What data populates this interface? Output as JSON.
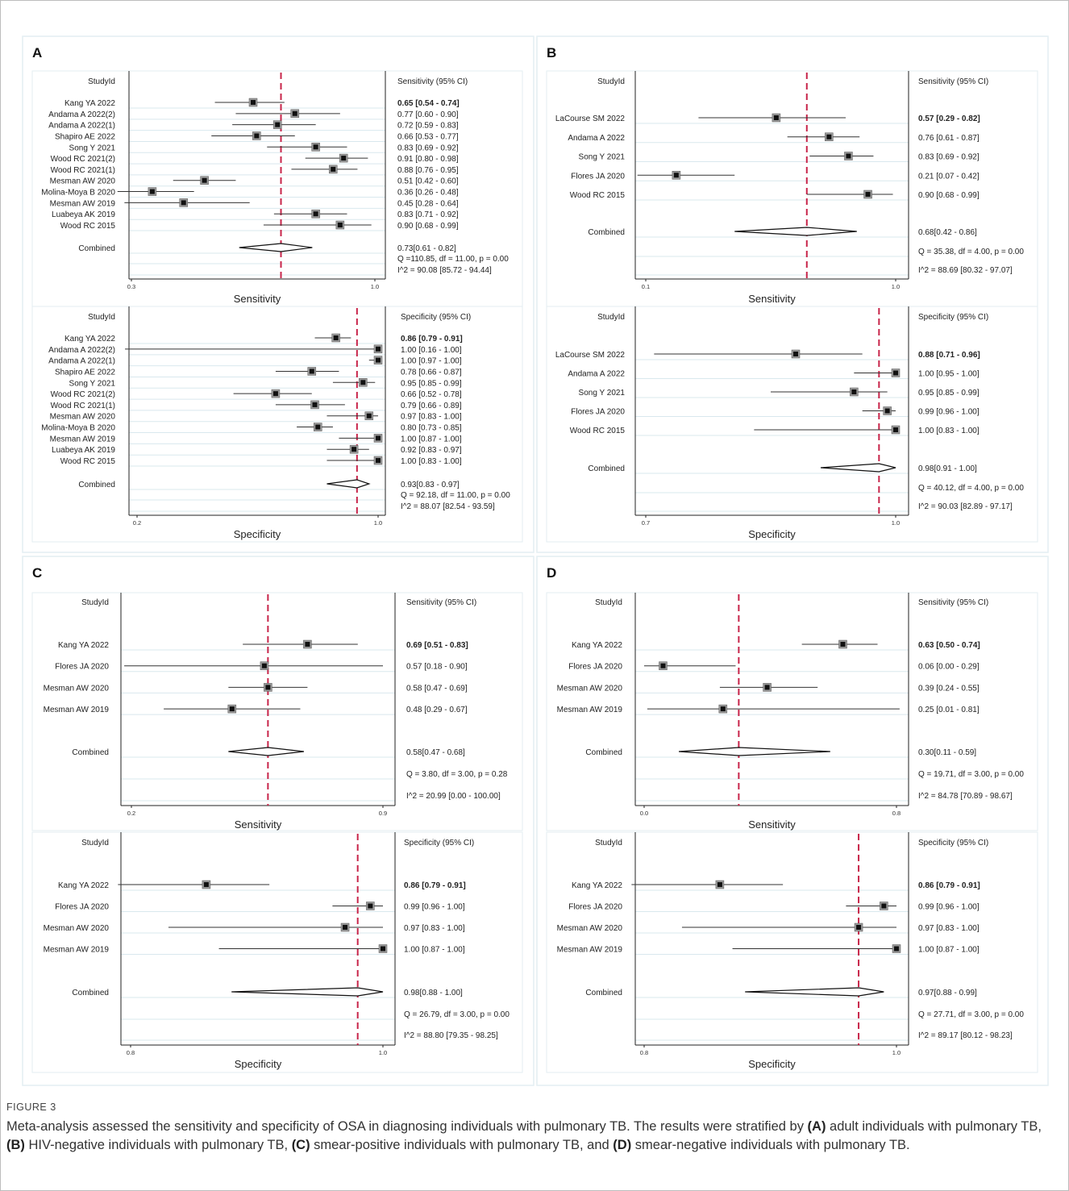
{
  "figure": {
    "label": "FIGURE 3",
    "caption_parts": [
      {
        "t": "Meta-analysis assessed the sensitivity and specificity of OSA in diagnosing individuals with pulmonary TB. The results were stratified by ",
        "b": false
      },
      {
        "t": "(A)",
        "b": true
      },
      {
        "t": " adult individuals with pulmonary TB, ",
        "b": false
      },
      {
        "t": "(B)",
        "b": true
      },
      {
        "t": " HIV-negative individuals with pulmonary TB, ",
        "b": false
      },
      {
        "t": "(C)",
        "b": true
      },
      {
        "t": " smear-positive individuals with pulmonary TB, and ",
        "b": false
      },
      {
        "t": "(D)",
        "b": true
      },
      {
        "t": " smear-negative individuals with pulmonary TB.",
        "b": false
      }
    ]
  },
  "chart_data": [
    {
      "panel": "A",
      "type": "forest",
      "measure": "sensitivity",
      "studyid_label": "StudyId",
      "ci_header": "Sensitivity (95% CI)",
      "xlabel": "Sensitivity",
      "xlim": [
        0.3,
        1.0
      ],
      "xtick_labels": [
        "0.3",
        "1.0"
      ],
      "reference_line": 0.73,
      "studies": [
        {
          "name": "Kang YA 2022",
          "est": 0.65,
          "lo": 0.54,
          "hi": 0.74,
          "text": "0.65 [0.54 - 0.74]"
        },
        {
          "name": "Andama A 2022(2)",
          "est": 0.77,
          "lo": 0.6,
          "hi": 0.9,
          "text": "0.77 [0.60 - 0.90]"
        },
        {
          "name": "Andama A 2022(1)",
          "est": 0.72,
          "lo": 0.59,
          "hi": 0.83,
          "text": "0.72 [0.59 - 0.83]"
        },
        {
          "name": "Shapiro AE 2022",
          "est": 0.66,
          "lo": 0.53,
          "hi": 0.77,
          "text": "0.66 [0.53 - 0.77]"
        },
        {
          "name": "Song Y 2021",
          "est": 0.83,
          "lo": 0.69,
          "hi": 0.92,
          "text": "0.83 [0.69 - 0.92]"
        },
        {
          "name": "Wood RC 2021(2)",
          "est": 0.91,
          "lo": 0.8,
          "hi": 0.98,
          "text": "0.91 [0.80 - 0.98]"
        },
        {
          "name": "Wood RC 2021(1)",
          "est": 0.88,
          "lo": 0.76,
          "hi": 0.95,
          "text": "0.88 [0.76 - 0.95]"
        },
        {
          "name": "Mesman AW 2020",
          "est": 0.51,
          "lo": 0.42,
          "hi": 0.6,
          "text": "0.51 [0.42 - 0.60]"
        },
        {
          "name": "Molina-Moya B 2020",
          "est": 0.36,
          "lo": 0.26,
          "hi": 0.48,
          "text": "0.36 [0.26 - 0.48]"
        },
        {
          "name": "Mesman AW 2019",
          "est": 0.45,
          "lo": 0.28,
          "hi": 0.64,
          "text": "0.45 [0.28 - 0.64]"
        },
        {
          "name": "Luabeya AK 2019",
          "est": 0.83,
          "lo": 0.71,
          "hi": 0.92,
          "text": "0.83 [0.71 - 0.92]"
        },
        {
          "name": "Wood RC 2015",
          "est": 0.9,
          "lo": 0.68,
          "hi": 0.99,
          "text": "0.90 [0.68 - 0.99]"
        }
      ],
      "combined": {
        "label": "Combined",
        "est": 0.73,
        "lo": 0.61,
        "hi": 0.82,
        "text": "0.73[0.61 - 0.82]"
      },
      "q_text": "Q =110.85, df = 11.00, p =  0.00",
      "i2_text": "I^2 = 90.08 [85.72 - 94.44]"
    },
    {
      "panel": "A",
      "type": "forest",
      "measure": "specificity",
      "studyid_label": "StudyId",
      "ci_header": "Specificity (95% CI)",
      "xlabel": "Specificity",
      "xlim": [
        0.2,
        1.0
      ],
      "xtick_labels": [
        "0.2",
        "1.0"
      ],
      "reference_line": 0.93,
      "studies": [
        {
          "name": "Kang YA 2022",
          "est": 0.86,
          "lo": 0.79,
          "hi": 0.91,
          "text": "0.86 [0.79 - 0.91]"
        },
        {
          "name": "Andama A 2022(2)",
          "est": 1.0,
          "lo": 0.16,
          "hi": 1.0,
          "text": "1.00 [0.16 - 1.00]"
        },
        {
          "name": "Andama A 2022(1)",
          "est": 1.0,
          "lo": 0.97,
          "hi": 1.0,
          "text": "1.00 [0.97 - 1.00]"
        },
        {
          "name": "Shapiro AE 2022",
          "est": 0.78,
          "lo": 0.66,
          "hi": 0.87,
          "text": "0.78 [0.66 - 0.87]"
        },
        {
          "name": "Song Y 2021",
          "est": 0.95,
          "lo": 0.85,
          "hi": 0.99,
          "text": "0.95 [0.85 - 0.99]"
        },
        {
          "name": "Wood RC 2021(2)",
          "est": 0.66,
          "lo": 0.52,
          "hi": 0.78,
          "text": "0.66 [0.52 - 0.78]"
        },
        {
          "name": "Wood RC 2021(1)",
          "est": 0.79,
          "lo": 0.66,
          "hi": 0.89,
          "text": "0.79 [0.66 - 0.89]"
        },
        {
          "name": "Mesman AW 2020",
          "est": 0.97,
          "lo": 0.83,
          "hi": 1.0,
          "text": "0.97 [0.83 - 1.00]"
        },
        {
          "name": "Molina-Moya B 2020",
          "est": 0.8,
          "lo": 0.73,
          "hi": 0.85,
          "text": "0.80 [0.73 - 0.85]"
        },
        {
          "name": "Mesman AW 2019",
          "est": 1.0,
          "lo": 0.87,
          "hi": 1.0,
          "text": "1.00 [0.87 - 1.00]"
        },
        {
          "name": "Luabeya AK 2019",
          "est": 0.92,
          "lo": 0.83,
          "hi": 0.97,
          "text": "0.92 [0.83 - 0.97]"
        },
        {
          "name": "Wood RC 2015",
          "est": 1.0,
          "lo": 0.83,
          "hi": 1.0,
          "text": "1.00 [0.83 - 1.00]"
        }
      ],
      "combined": {
        "label": "Combined",
        "est": 0.93,
        "lo": 0.83,
        "hi": 0.97,
        "text": "0.93[0.83 - 0.97]"
      },
      "q_text": "Q = 92.18, df = 11.00, p =  0.00",
      "i2_text": "I^2 = 88.07 [82.54 - 93.59]"
    },
    {
      "panel": "B",
      "type": "forest",
      "measure": "sensitivity",
      "studyid_label": "StudyId",
      "ci_header": "Sensitivity (95% CI)",
      "xlabel": "Sensitivity",
      "xlim": [
        0.1,
        1.0
      ],
      "xtick_labels": [
        "0.1",
        "1.0"
      ],
      "reference_line": 0.68,
      "studies": [
        {
          "name": "LaCourse SM 2022",
          "est": 0.57,
          "lo": 0.29,
          "hi": 0.82,
          "text": "0.57 [0.29 - 0.82]"
        },
        {
          "name": "Andama A 2022",
          "est": 0.76,
          "lo": 0.61,
          "hi": 0.87,
          "text": "0.76 [0.61 - 0.87]"
        },
        {
          "name": "Song Y 2021",
          "est": 0.83,
          "lo": 0.69,
          "hi": 0.92,
          "text": "0.83 [0.69 - 0.92]"
        },
        {
          "name": "Flores JA 2020",
          "est": 0.21,
          "lo": 0.07,
          "hi": 0.42,
          "text": "0.21 [0.07 - 0.42]"
        },
        {
          "name": "Wood RC 2015",
          "est": 0.9,
          "lo": 0.68,
          "hi": 0.99,
          "text": "0.90 [0.68 - 0.99]"
        }
      ],
      "combined": {
        "label": "Combined",
        "est": 0.68,
        "lo": 0.42,
        "hi": 0.86,
        "text": "0.68[0.42 - 0.86]"
      },
      "q_text": "Q = 35.38, df = 4.00, p =  0.00",
      "i2_text": "I^2 = 88.69 [80.32 - 97.07]"
    },
    {
      "panel": "B",
      "type": "forest",
      "measure": "specificity",
      "studyid_label": "StudyId",
      "ci_header": "Specificity (95% CI)",
      "xlabel": "Specificity",
      "xlim": [
        0.7,
        1.0
      ],
      "xtick_labels": [
        "0.7",
        "1.0"
      ],
      "reference_line": 0.98,
      "studies": [
        {
          "name": "LaCourse SM 2022",
          "est": 0.88,
          "lo": 0.71,
          "hi": 0.96,
          "text": "0.88 [0.71 - 0.96]"
        },
        {
          "name": "Andama A 2022",
          "est": 1.0,
          "lo": 0.95,
          "hi": 1.0,
          "text": "1.00 [0.95 - 1.00]"
        },
        {
          "name": "Song Y 2021",
          "est": 0.95,
          "lo": 0.85,
          "hi": 0.99,
          "text": "0.95 [0.85 - 0.99]"
        },
        {
          "name": "Flores JA 2020",
          "est": 0.99,
          "lo": 0.96,
          "hi": 1.0,
          "text": "0.99 [0.96 - 1.00]"
        },
        {
          "name": "Wood RC 2015",
          "est": 1.0,
          "lo": 0.83,
          "hi": 1.0,
          "text": "1.00 [0.83 - 1.00]"
        }
      ],
      "combined": {
        "label": "Combined",
        "est": 0.98,
        "lo": 0.91,
        "hi": 1.0,
        "text": "0.98[0.91 - 1.00]"
      },
      "q_text": "Q = 40.12, df = 4.00, p =  0.00",
      "i2_text": "I^2 = 90.03 [82.89 - 97.17]"
    },
    {
      "panel": "C",
      "type": "forest",
      "measure": "sensitivity",
      "studyid_label": "StudyId",
      "ci_header": "Sensitivity (95% CI)",
      "xlabel": "Sensitivity",
      "xlim": [
        0.2,
        0.9
      ],
      "xtick_labels": [
        "0.2",
        "0.9"
      ],
      "reference_line": 0.58,
      "studies": [
        {
          "name": "Kang YA 2022",
          "est": 0.69,
          "lo": 0.51,
          "hi": 0.83,
          "text": "0.69 [0.51 - 0.83]"
        },
        {
          "name": "Flores JA 2020",
          "est": 0.57,
          "lo": 0.18,
          "hi": 0.9,
          "text": "0.57 [0.18 - 0.90]"
        },
        {
          "name": "Mesman AW 2020",
          "est": 0.58,
          "lo": 0.47,
          "hi": 0.69,
          "text": "0.58 [0.47 - 0.69]"
        },
        {
          "name": "Mesman AW 2019",
          "est": 0.48,
          "lo": 0.29,
          "hi": 0.67,
          "text": "0.48 [0.29 - 0.67]"
        }
      ],
      "combined": {
        "label": "Combined",
        "est": 0.58,
        "lo": 0.47,
        "hi": 0.68,
        "text": "0.58[0.47 - 0.68]"
      },
      "q_text": "Q =  3.80, df = 3.00, p =  0.28",
      "i2_text": "I^2 = 20.99 [0.00 - 100.00]"
    },
    {
      "panel": "C",
      "type": "forest",
      "measure": "specificity",
      "studyid_label": "StudyId",
      "ci_header": "Specificity (95% CI)",
      "xlabel": "Specificity",
      "xlim": [
        0.8,
        1.0
      ],
      "xtick_labels": [
        "0.8",
        "1.0"
      ],
      "reference_line": 0.98,
      "studies": [
        {
          "name": "Kang YA 2022",
          "est": 0.86,
          "lo": 0.79,
          "hi": 0.91,
          "text": "0.86 [0.79 - 0.91]"
        },
        {
          "name": "Flores JA 2020",
          "est": 0.99,
          "lo": 0.96,
          "hi": 1.0,
          "text": "0.99 [0.96 - 1.00]"
        },
        {
          "name": "Mesman AW 2020",
          "est": 0.97,
          "lo": 0.83,
          "hi": 1.0,
          "text": "0.97 [0.83 - 1.00]"
        },
        {
          "name": "Mesman AW 2019",
          "est": 1.0,
          "lo": 0.87,
          "hi": 1.0,
          "text": "1.00 [0.87 - 1.00]"
        }
      ],
      "combined": {
        "label": "Combined",
        "est": 0.98,
        "lo": 0.88,
        "hi": 1.0,
        "text": "0.98[0.88 - 1.00]"
      },
      "q_text": "Q = 26.79, df = 3.00, p =  0.00",
      "i2_text": "I^2 = 88.80 [79.35 - 98.25]"
    },
    {
      "panel": "D",
      "type": "forest",
      "measure": "sensitivity",
      "studyid_label": "StudyId",
      "ci_header": "Sensitivity (95% CI)",
      "xlabel": "Sensitivity",
      "xlim": [
        0.0,
        0.8
      ],
      "xtick_labels": [
        "0.0",
        "0.8"
      ],
      "reference_line": 0.3,
      "studies": [
        {
          "name": "Kang YA 2022",
          "est": 0.63,
          "lo": 0.5,
          "hi": 0.74,
          "text": "0.63 [0.50 - 0.74]"
        },
        {
          "name": "Flores JA 2020",
          "est": 0.06,
          "lo": 0.0,
          "hi": 0.29,
          "text": "0.06 [0.00 - 0.29]"
        },
        {
          "name": "Mesman AW 2020",
          "est": 0.39,
          "lo": 0.24,
          "hi": 0.55,
          "text": "0.39 [0.24 - 0.55]"
        },
        {
          "name": "Mesman AW 2019",
          "est": 0.25,
          "lo": 0.01,
          "hi": 0.81,
          "text": "0.25 [0.01 - 0.81]"
        }
      ],
      "combined": {
        "label": "Combined",
        "est": 0.3,
        "lo": 0.11,
        "hi": 0.59,
        "text": "0.30[0.11 - 0.59]"
      },
      "q_text": "Q = 19.71, df = 3.00, p =  0.00",
      "i2_text": "I^2 = 84.78 [70.89 - 98.67]"
    },
    {
      "panel": "D",
      "type": "forest",
      "measure": "specificity",
      "studyid_label": "StudyId",
      "ci_header": "Specificity (95% CI)",
      "xlabel": "Specificity",
      "xlim": [
        0.8,
        1.0
      ],
      "xtick_labels": [
        "0.8",
        "1.0"
      ],
      "reference_line": 0.97,
      "studies": [
        {
          "name": "Kang YA 2022",
          "est": 0.86,
          "lo": 0.79,
          "hi": 0.91,
          "text": "0.86 [0.79 - 0.91]"
        },
        {
          "name": "Flores JA 2020",
          "est": 0.99,
          "lo": 0.96,
          "hi": 1.0,
          "text": "0.99 [0.96 - 1.00]"
        },
        {
          "name": "Mesman AW 2020",
          "est": 0.97,
          "lo": 0.83,
          "hi": 1.0,
          "text": "0.97 [0.83 - 1.00]"
        },
        {
          "name": "Mesman AW 2019",
          "est": 1.0,
          "lo": 0.87,
          "hi": 1.0,
          "text": "1.00 [0.87 - 1.00]"
        }
      ],
      "combined": {
        "label": "Combined",
        "est": 0.97,
        "lo": 0.88,
        "hi": 0.99,
        "text": "0.97[0.88 - 0.99]"
      },
      "q_text": "Q = 27.71, df = 3.00, p =  0.00",
      "i2_text": "I^2 = 89.17 [80.12 - 98.23]"
    }
  ],
  "colors": {
    "reference_line": "#c8254a",
    "marker": "#111111",
    "marker_box": "#9a9a9a",
    "row_line": "#d9e8ee",
    "panel_border": "#e3eef2"
  }
}
